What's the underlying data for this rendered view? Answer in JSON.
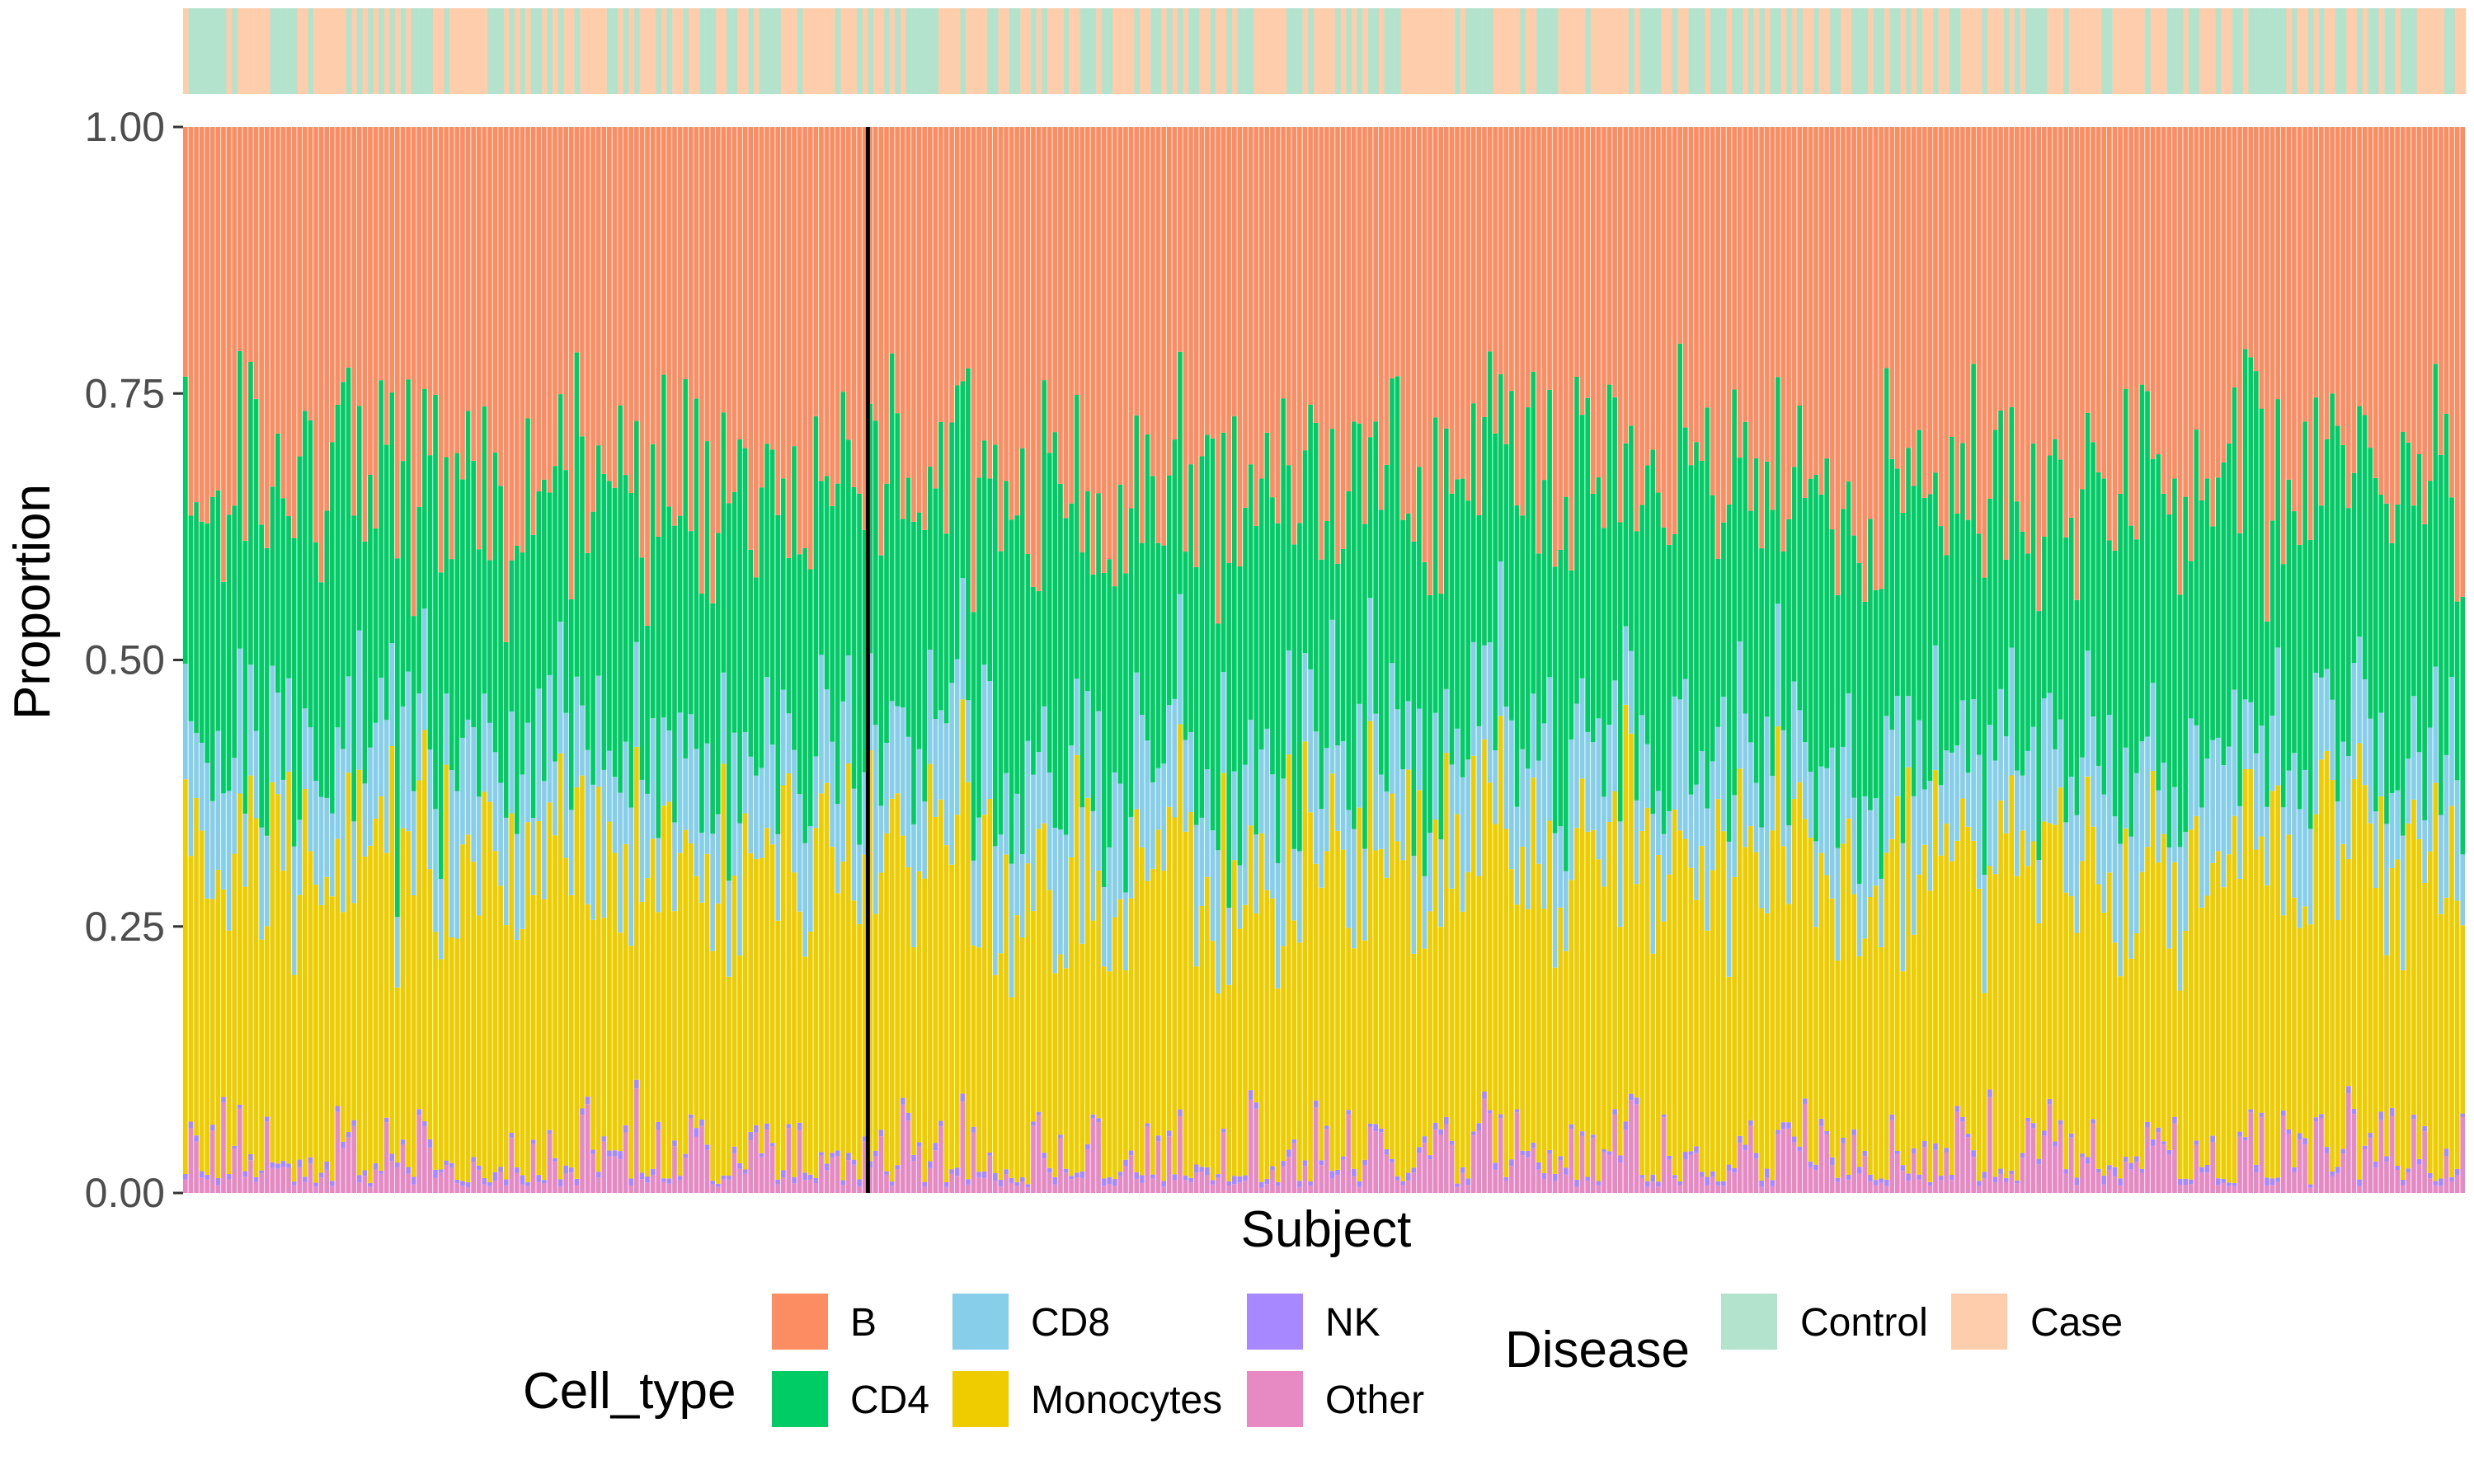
{
  "chart_data": {
    "type": "bar",
    "stacked": true,
    "title": "",
    "xlabel": "Subject",
    "ylabel": "Proportion",
    "ylim": [
      0,
      1
    ],
    "yticks": [
      "0.00",
      "0.25",
      "0.50",
      "0.75",
      "1.00"
    ],
    "n_subjects": 420,
    "n_control_subjects": 126,
    "stack_order_bottom_to_top": [
      "Other",
      "NK",
      "Monocytes",
      "CD8",
      "CD4",
      "B"
    ],
    "cell_types": [
      {
        "name": "B",
        "color": "#FC8D62"
      },
      {
        "name": "CD4",
        "color": "#00CC66"
      },
      {
        "name": "CD8",
        "color": "#87CEEB"
      },
      {
        "name": "Monocytes",
        "color": "#EECC00"
      },
      {
        "name": "NK",
        "color": "#A788FF"
      },
      {
        "name": "Other",
        "color": "#E78AC3"
      }
    ],
    "disease": [
      {
        "name": "Control",
        "color": "#B3E2CD"
      },
      {
        "name": "Case",
        "color": "#FDCDAC"
      }
    ],
    "mean_proportions": {
      "Other": 0.03,
      "NK": 0.005,
      "Monocytes": 0.28,
      "CD8": 0.1,
      "CD4": 0.25,
      "B": 0.335
    },
    "boundary_line": {
      "between_groups": [
        "Control",
        "Case"
      ],
      "color": "#000000"
    },
    "legend": {
      "position": "bottom",
      "cell_type_title": "Cell_type",
      "disease_title": "Disease"
    }
  }
}
